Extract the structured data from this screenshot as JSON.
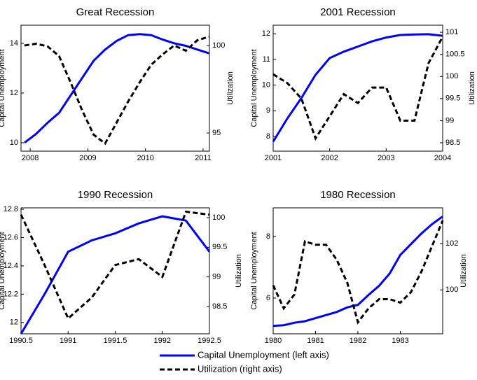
{
  "chart_data": [
    {
      "type": "line",
      "title": "Great Recession",
      "ylabel": "Capital Unemployment",
      "y2label": "Utilization",
      "x": [
        2007.9,
        2008.1,
        2008.3,
        2008.5,
        2008.7,
        2008.9,
        2009.1,
        2009.3,
        2009.5,
        2009.7,
        2009.9,
        2010.1,
        2010.3,
        2010.5,
        2010.7,
        2010.9,
        2011.1
      ],
      "series": [
        {
          "name": "Capital Unemployment (left axis)",
          "color": "#0000ff",
          "dash": false,
          "values": [
            10.0,
            10.35,
            10.8,
            11.2,
            11.9,
            12.6,
            13.3,
            13.75,
            14.1,
            14.33,
            14.37,
            14.33,
            14.15,
            14.0,
            13.9,
            13.75,
            13.6
          ]
        },
        {
          "name": "Utilization (right axis)",
          "color": "#000000",
          "dash": true,
          "axis": "y2",
          "values": [
            100.0,
            100.1,
            99.95,
            99.4,
            97.9,
            96.3,
            94.9,
            94.4,
            95.6,
            96.8,
            97.9,
            98.9,
            99.5,
            100.0,
            99.7,
            100.3,
            100.5
          ]
        }
      ],
      "xlim": [
        2007.84,
        2011.11
      ],
      "xticks": [
        2008,
        2009,
        2010,
        2011
      ],
      "ylim": [
        9.66,
        14.73
      ],
      "yticks": [
        10,
        12,
        14
      ],
      "y2lim": [
        93.96,
        101.16
      ],
      "y2ticks": [
        95,
        100
      ]
    },
    {
      "type": "line",
      "title": "2001 Recession",
      "ylabel": "Capital Unemployment",
      "y2label": "Utilization",
      "x": [
        2001.0,
        2001.25,
        2001.5,
        2001.75,
        2002.0,
        2002.25,
        2002.5,
        2002.75,
        2003.0,
        2003.25,
        2003.5,
        2003.75,
        2004.0
      ],
      "series": [
        {
          "color": "#0000ff",
          "dash": false,
          "values": [
            7.8,
            8.7,
            9.5,
            10.4,
            11.05,
            11.3,
            11.5,
            11.7,
            11.85,
            11.95,
            11.97,
            11.98,
            11.92
          ]
        },
        {
          "color": "#000000",
          "dash": true,
          "axis": "y2",
          "values": [
            100.05,
            99.85,
            99.5,
            98.6,
            99.1,
            99.6,
            99.4,
            99.75,
            99.75,
            99.0,
            99.0,
            100.3,
            100.9
          ]
        }
      ],
      "xlim": [
        2001,
        2004
      ],
      "xticks": [
        2001,
        2002,
        2003,
        2004
      ],
      "ylim": [
        7.43,
        12.33
      ],
      "yticks": [
        8,
        9,
        10,
        11,
        12
      ],
      "y2lim": [
        98.31,
        101.16
      ],
      "y2ticks": [
        98.5,
        99,
        99.5,
        100,
        100.5,
        101
      ]
    },
    {
      "type": "line",
      "title": "1990 Recession",
      "ylabel": "Capital Unemployment",
      "y2label": "Utilization",
      "x": [
        1990.5,
        1990.75,
        1991.0,
        1991.25,
        1991.5,
        1991.75,
        1992.0,
        1992.25,
        1992.5
      ],
      "series": [
        {
          "color": "#0000ff",
          "dash": false,
          "values": [
            11.92,
            12.2,
            12.5,
            12.58,
            12.63,
            12.7,
            12.75,
            12.72,
            12.5
          ]
        },
        {
          "color": "#000000",
          "dash": true,
          "axis": "y2",
          "values": [
            100.05,
            99.2,
            98.3,
            98.65,
            99.2,
            99.3,
            99.0,
            100.1,
            100.05
          ]
        }
      ],
      "xlim": [
        1990.5,
        1992.5
      ],
      "xticks": [
        1990.5,
        1991,
        1991.5,
        1992,
        1992.5
      ],
      "ylim": [
        11.92,
        12.81
      ],
      "yticks": [
        12,
        12.2,
        12.4,
        12.6,
        12.8
      ],
      "y2lim": [
        98.04,
        100.165
      ],
      "y2ticks": [
        98.5,
        99,
        99.5,
        100
      ]
    },
    {
      "type": "line",
      "title": "1980 Recession",
      "ylabel": "Capital Unemployment",
      "y2label": "Utilization",
      "x": [
        1980.0,
        1980.25,
        1980.5,
        1980.75,
        1981.0,
        1981.25,
        1981.5,
        1981.75,
        1982.0,
        1982.25,
        1982.5,
        1982.75,
        1983.0,
        1983.25,
        1983.5,
        1983.75,
        1984.0
      ],
      "series": [
        {
          "color": "#0000ff",
          "dash": false,
          "values": [
            5.1,
            5.12,
            5.2,
            5.25,
            5.35,
            5.45,
            5.55,
            5.7,
            5.78,
            6.1,
            6.4,
            6.8,
            7.4,
            7.75,
            8.1,
            8.4,
            8.65
          ]
        },
        {
          "color": "#000000",
          "dash": true,
          "axis": "y2",
          "values": [
            100.2,
            99.2,
            99.8,
            102.1,
            101.95,
            101.95,
            101.3,
            100.3,
            98.6,
            99.2,
            99.6,
            99.6,
            99.45,
            99.9,
            100.8,
            101.9,
            103.0
          ]
        }
      ],
      "xlim": [
        1980,
        1984
      ],
      "xticks": [
        1980,
        1981,
        1982,
        1983
      ],
      "ylim": [
        4.84,
        8.93
      ],
      "yticks": [
        6,
        8
      ],
      "y2lim": [
        98.1,
        103.55
      ],
      "y2ticks": [
        100,
        102
      ]
    }
  ]
}
